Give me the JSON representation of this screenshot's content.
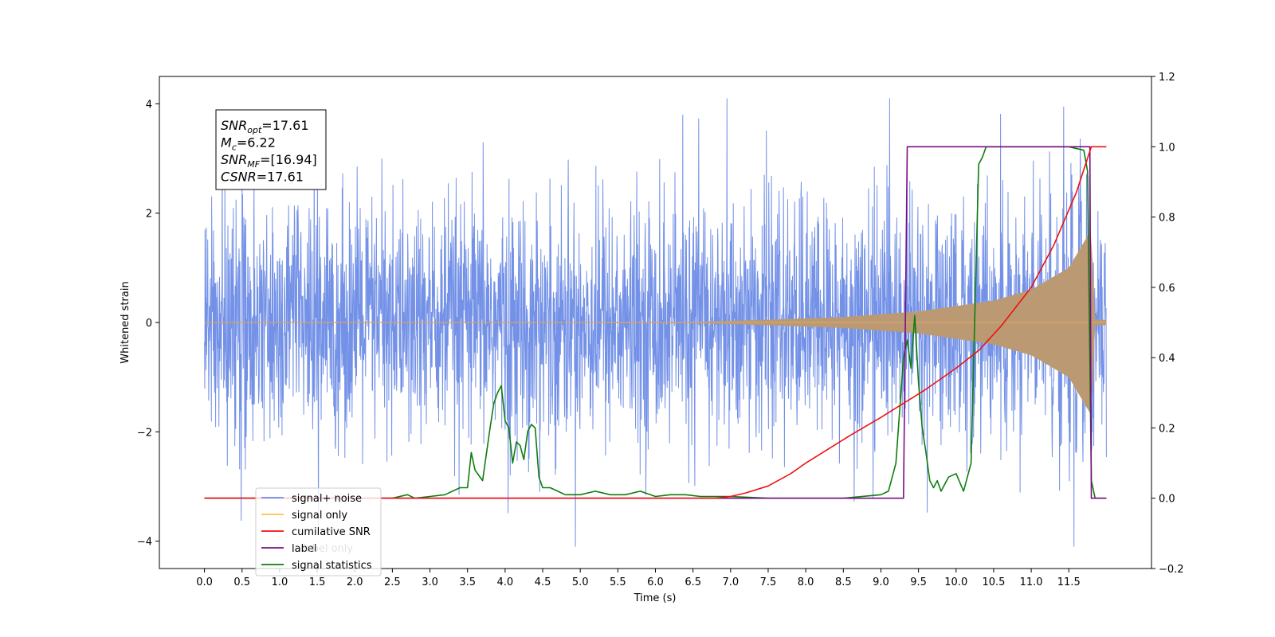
{
  "chart_data": {
    "type": "line",
    "xlabel": "Time (s)",
    "ylabel": "Whitened strain",
    "ylabel_right": "",
    "xlim": [
      -0.6,
      12.6
    ],
    "ylim": [
      -4.5,
      4.5
    ],
    "ylim_right": [
      -0.2,
      1.2
    ],
    "x_ticks": [
      "0.0",
      "0.5",
      "1.0",
      "1.5",
      "2.0",
      "2.5",
      "3.0",
      "3.5",
      "4.0",
      "4.5",
      "5.0",
      "5.5",
      "6.0",
      "6.5",
      "7.0",
      "7.5",
      "8.0",
      "8.5",
      "9.0",
      "9.5",
      "10.0",
      "10.5",
      "11.0",
      "11.5"
    ],
    "y_ticks_left": [
      "4",
      "2",
      "0",
      "−2",
      "−4"
    ],
    "y_ticks_right": [
      "1.2",
      "1.0",
      "0.8",
      "0.6",
      "0.4",
      "0.2",
      "0.0",
      "−0.2"
    ],
    "annotation": {
      "lines": [
        {
          "main": "SNR",
          "sub": "opt",
          "rest": "=17.61"
        },
        {
          "main": "M",
          "sub": "c",
          "rest": "=6.22"
        },
        {
          "main": "SNR",
          "sub": "MF",
          "rest": "=[16.94]"
        },
        {
          "main": "CSNR",
          "sub": "",
          "rest": "=17.61"
        }
      ]
    },
    "legend": {
      "placement": "lower-left",
      "entries": [
        {
          "label": "signal+ noise",
          "color": "#6c8be6"
        },
        {
          "label": "signal only",
          "color": "#ffc04d"
        },
        {
          "label": "cumilative SNR",
          "color": "#ee1111"
        },
        {
          "label": "label",
          "color": "#7a0f82"
        },
        {
          "label": "signal statistics",
          "color": "#0f7d0f"
        }
      ],
      "hidden_text": "label only"
    },
    "series": [
      {
        "name": "signal+ noise",
        "axis": "left",
        "description_range": [
          -4.1,
          4.1
        ],
        "x_range": [
          0.0,
          12.0
        ]
      },
      {
        "name": "signal only",
        "axis": "left",
        "envelope": {
          "x": [
            0,
            6.5,
            7.5,
            8.5,
            9.5,
            10.5,
            11.0,
            11.5,
            11.8,
            11.85,
            12.0
          ],
          "amp": [
            0.0,
            0.01,
            0.05,
            0.1,
            0.2,
            0.4,
            0.6,
            1.0,
            1.7,
            0.05,
            0.05
          ]
        }
      },
      {
        "name": "cumilative SNR",
        "axis": "right",
        "x": [
          0,
          6.8,
          7.0,
          7.2,
          7.5,
          7.8,
          8.0,
          8.3,
          8.6,
          9.0,
          9.3,
          9.6,
          10.0,
          10.3,
          10.6,
          11.0,
          11.3,
          11.6,
          11.8,
          11.85,
          12.0
        ],
        "y": [
          0,
          0,
          0.005,
          0.015,
          0.035,
          0.07,
          0.1,
          0.14,
          0.18,
          0.23,
          0.27,
          0.31,
          0.37,
          0.42,
          0.49,
          0.6,
          0.72,
          0.87,
          1.0,
          1.0,
          1.0
        ]
      },
      {
        "name": "label",
        "axis": "right",
        "x": [
          0,
          9.3,
          9.35,
          11.78,
          11.8,
          12.0
        ],
        "y": [
          0,
          0,
          1.0,
          1.0,
          0,
          0
        ]
      },
      {
        "name": "signal statistics",
        "axis": "right",
        "x": [
          0,
          2.5,
          2.7,
          2.8,
          3.0,
          3.2,
          3.4,
          3.5,
          3.55,
          3.6,
          3.7,
          3.8,
          3.85,
          3.9,
          3.95,
          4.0,
          4.05,
          4.1,
          4.15,
          4.2,
          4.25,
          4.3,
          4.35,
          4.4,
          4.45,
          4.5,
          4.6,
          4.7,
          4.8,
          5.0,
          5.2,
          5.4,
          5.6,
          5.8,
          6.0,
          6.2,
          6.4,
          6.6,
          6.8,
          7.0,
          7.5,
          8.0,
          8.5,
          9.0,
          9.1,
          9.2,
          9.25,
          9.3,
          9.35,
          9.4,
          9.45,
          9.5,
          9.55,
          9.6,
          9.65,
          9.7,
          9.75,
          9.8,
          9.85,
          9.9,
          10.0,
          10.1,
          10.2,
          10.3,
          10.35,
          10.4,
          10.45,
          10.5,
          10.6,
          10.7,
          11.0,
          11.5,
          11.7,
          11.75,
          11.8,
          11.85,
          11.9,
          12.0
        ],
        "y": [
          0,
          0,
          0.01,
          0,
          0.005,
          0.01,
          0.03,
          0.03,
          0.13,
          0.08,
          0.05,
          0.2,
          0.27,
          0.3,
          0.32,
          0.22,
          0.2,
          0.1,
          0.16,
          0.15,
          0.11,
          0.19,
          0.21,
          0.2,
          0.06,
          0.03,
          0.03,
          0.02,
          0.01,
          0.01,
          0.02,
          0.01,
          0.01,
          0.02,
          0.005,
          0.01,
          0.01,
          0.005,
          0.005,
          0.005,
          0.0,
          0.0,
          0.0,
          0.01,
          0.02,
          0.1,
          0.25,
          0.4,
          0.45,
          0.37,
          0.52,
          0.33,
          0.2,
          0.13,
          0.05,
          0.03,
          0.05,
          0.02,
          0.04,
          0.06,
          0.07,
          0.02,
          0.1,
          0.95,
          0.97,
          1.0,
          1.0,
          1.0,
          1.0,
          1.0,
          1.0,
          1.0,
          0.99,
          0.93,
          0.05,
          0.0,
          0.0,
          0.0
        ]
      }
    ]
  }
}
